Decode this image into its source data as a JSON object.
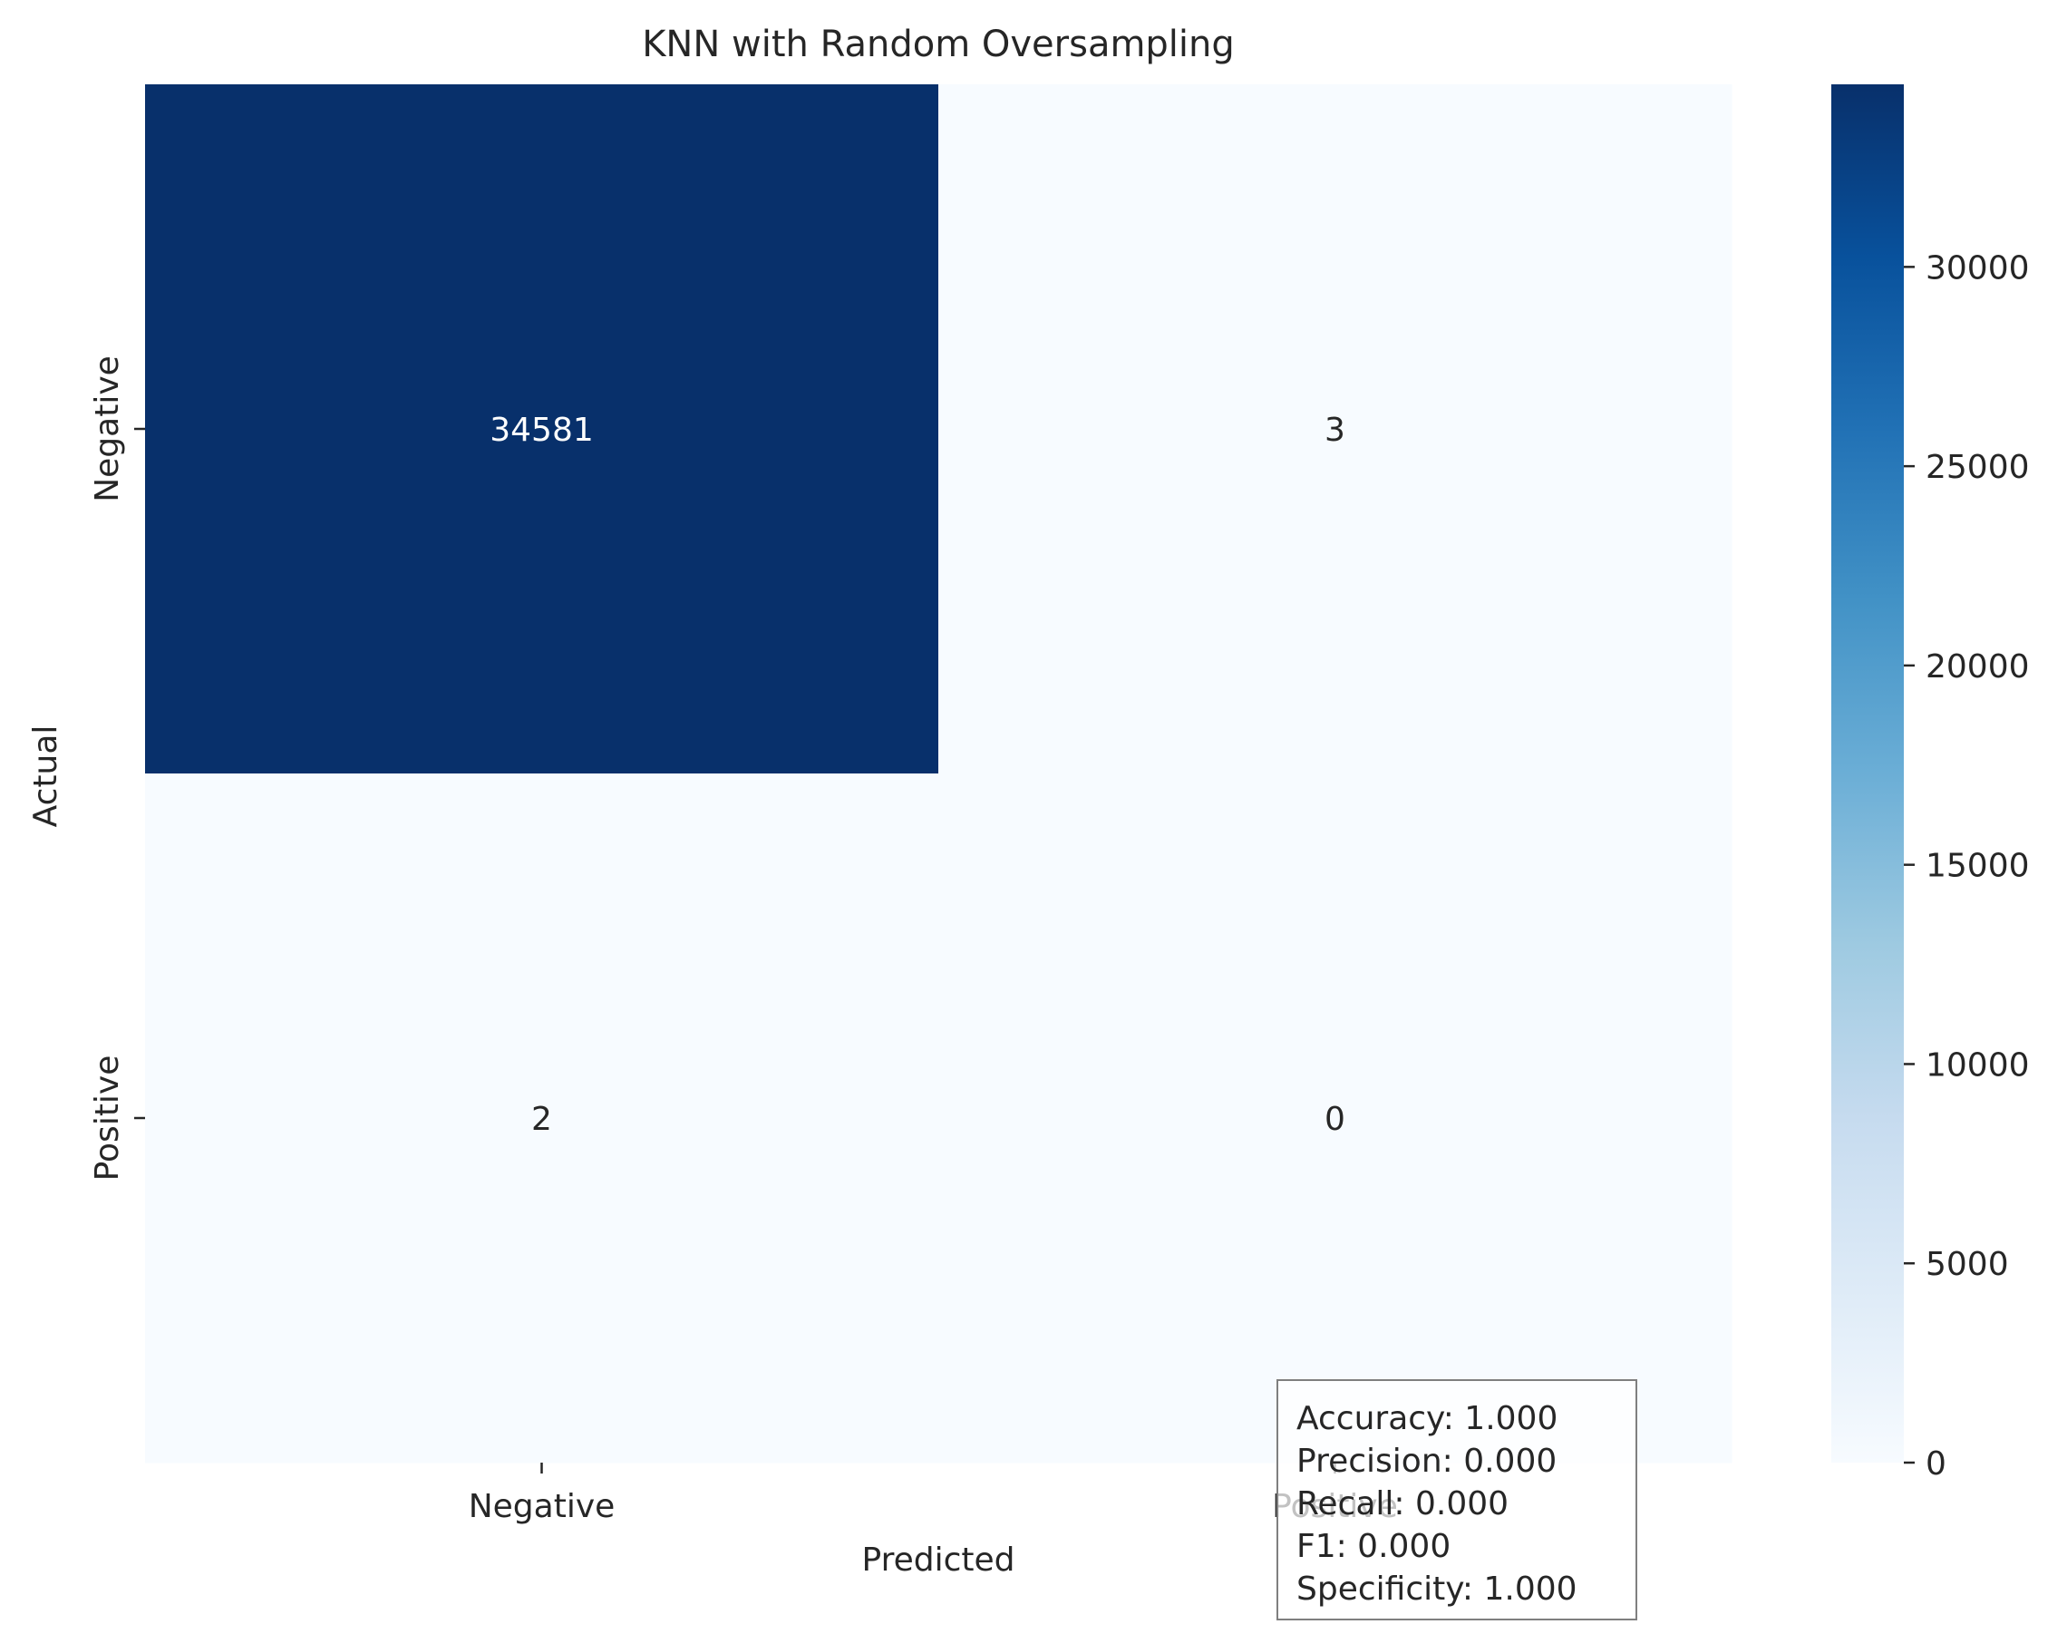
{
  "chart_data": {
    "type": "heatmap",
    "title": "KNN with Random Oversampling",
    "xlabel": "Predicted",
    "ylabel": "Actual",
    "x_categories": [
      "Negative",
      "Positive"
    ],
    "y_categories": [
      "Negative",
      "Positive"
    ],
    "values": [
      [
        34581,
        3
      ],
      [
        2,
        0
      ]
    ],
    "colormap": "Blues",
    "colors": {
      "low": "#f7fbff",
      "high": "#08306b",
      "low_annot": "#262626",
      "high_annot": "#ffffff"
    },
    "colorbar": {
      "min": 0,
      "max": 34581,
      "ticks": [
        0,
        5000,
        10000,
        15000,
        20000,
        25000,
        30000
      ]
    },
    "annotations": [
      "Accuracy: 1.000",
      "Precision: 0.000",
      "Recall: 0.000",
      "F1: 0.000",
      "Specificity: 1.000"
    ]
  }
}
